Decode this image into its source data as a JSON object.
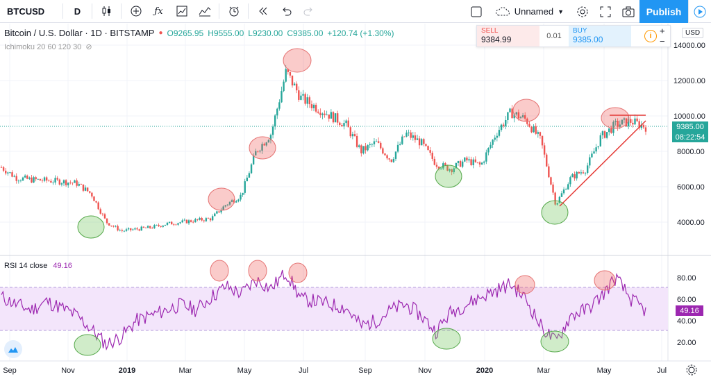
{
  "toolbar": {
    "symbol": "BTCUSD",
    "interval": "D",
    "layout_name": "Unnamed",
    "publish_label": "Publish"
  },
  "legend": {
    "title": "Bitcoin / U.S. Dollar · 1D · BITSTAMP",
    "open": "O9265.95",
    "high": "H9555.00",
    "low": "L9230.00",
    "close": "C9385.00",
    "change": "+120.74 (+1.30%)",
    "indicator": "Ichimoku 20 60 120 30"
  },
  "trade": {
    "sell_label": "SELL",
    "sell_price": "9384.99",
    "spread": "0.01",
    "buy_label": "BUY",
    "buy_price": "9385.00"
  },
  "currency": "USD",
  "last_price": "9385.00",
  "countdown": "08:22:54",
  "rsi": {
    "label": "RSI 14 close",
    "value": "49.16"
  },
  "colors": {
    "up": "#26a69a",
    "down": "#ef5350",
    "rsi": "#9c27b0",
    "accent": "#2196f3"
  },
  "chart_data": {
    "type": "line",
    "price_axis": [
      "14000.00",
      "12000.00",
      "10000.00",
      "8000.00",
      "6000.00",
      "4000.00"
    ],
    "rsi_axis": [
      "80.00",
      "60.00",
      "40.00",
      "20.00"
    ],
    "x_labels": [
      "Sep",
      "Nov",
      "2019",
      "Mar",
      "May",
      "Jul",
      "Sep",
      "Nov",
      "2020",
      "Mar",
      "May",
      "Jul"
    ],
    "rsi_band": [
      30,
      70
    ],
    "price_series": [
      7100,
      6500,
      6400,
      6350,
      6300,
      6200,
      5600,
      4000,
      3500,
      3600,
      3700,
      3900,
      4000,
      4100,
      4200,
      5000,
      5500,
      8000,
      9000,
      12500,
      11000,
      10500,
      10000,
      9500,
      8000,
      8500,
      7500,
      9000,
      8500,
      7300,
      7000,
      7500,
      7200,
      9000,
      10200,
      9800,
      8600,
      5000,
      6500,
      7000,
      8800,
      9500,
      9700,
      9385
    ],
    "rsi_series": [
      62,
      55,
      50,
      58,
      52,
      45,
      32,
      18,
      25,
      40,
      45,
      50,
      55,
      50,
      62,
      72,
      65,
      78,
      70,
      85,
      60,
      58,
      55,
      52,
      35,
      40,
      50,
      55,
      45,
      30,
      48,
      55,
      62,
      68,
      74,
      60,
      35,
      20,
      45,
      50,
      62,
      80,
      60,
      49
    ]
  }
}
